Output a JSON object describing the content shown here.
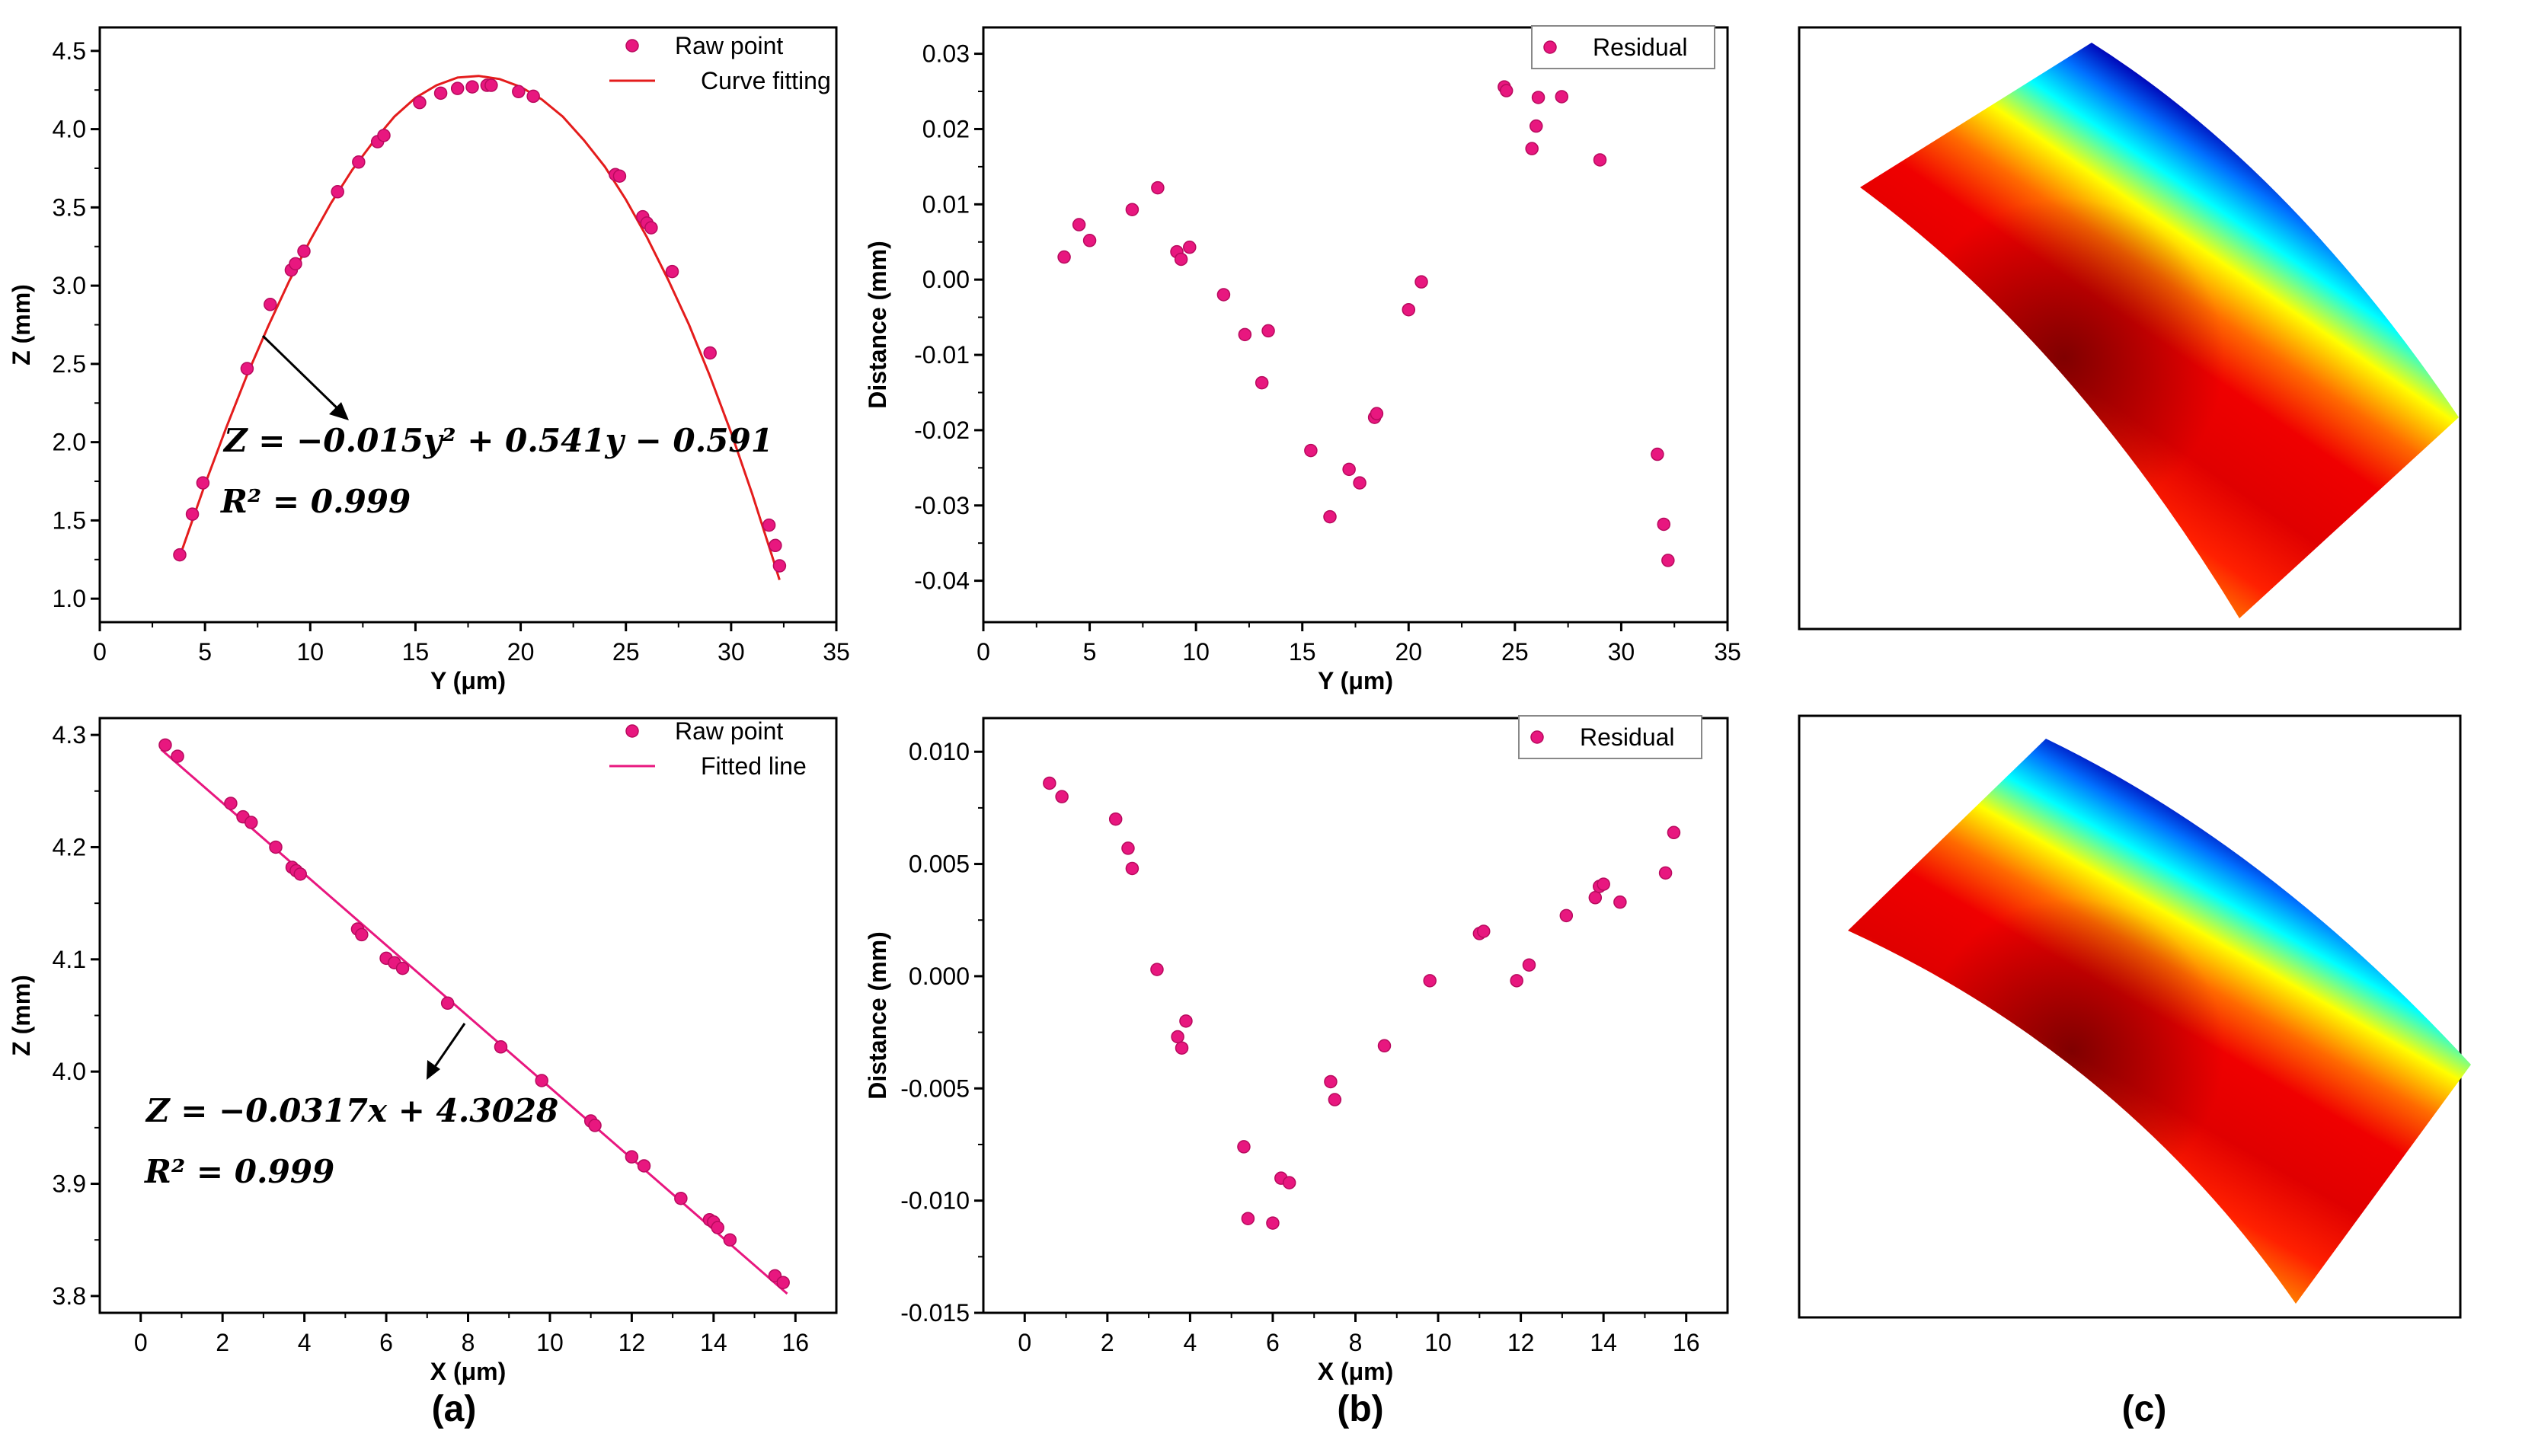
{
  "chart_data": [
    {
      "id": "chart-a-top",
      "type": "scatter",
      "xlabel": "Y (μm)",
      "ylabel": "Z (mm)",
      "xlim": [
        0,
        35
      ],
      "ylim": [
        0.85,
        4.65
      ],
      "xticks": [
        0,
        5,
        10,
        15,
        20,
        25,
        30,
        35
      ],
      "yticks": [
        1.0,
        1.5,
        2.0,
        2.5,
        3.0,
        3.5,
        4.0,
        4.5
      ],
      "ytick_decimals": 1,
      "series": [
        {
          "name": "Raw point",
          "kind": "points",
          "color": "#e8177f",
          "x": [
            3.8,
            4.4,
            4.9,
            7.0,
            8.1,
            9.1,
            9.3,
            9.7,
            11.3,
            12.3,
            13.2,
            13.5,
            15.2,
            16.2,
            17.0,
            17.7,
            18.4,
            18.6,
            19.9,
            20.6,
            24.5,
            24.7,
            25.8,
            26.0,
            26.2,
            27.2,
            29.0,
            31.8,
            32.1,
            32.3
          ],
          "y": [
            1.28,
            1.54,
            1.74,
            2.47,
            2.88,
            3.1,
            3.14,
            3.22,
            3.6,
            3.79,
            3.92,
            3.96,
            4.17,
            4.23,
            4.26,
            4.27,
            4.28,
            4.28,
            4.24,
            4.21,
            3.71,
            3.7,
            3.44,
            3.4,
            3.37,
            3.09,
            2.57,
            1.47,
            1.34,
            1.21
          ]
        },
        {
          "name": "Curve fitting",
          "kind": "line",
          "color": "#e41c1c",
          "x": [
            3.8,
            5,
            6,
            7,
            8,
            9,
            10,
            11,
            12,
            13,
            14,
            15,
            16,
            17,
            18,
            19,
            20,
            21,
            22,
            23,
            24,
            25,
            26,
            27,
            28,
            29,
            30,
            31,
            32,
            32.3
          ],
          "y": [
            1.27,
            1.73,
            2.09,
            2.43,
            2.74,
            3.03,
            3.29,
            3.53,
            3.74,
            3.92,
            4.08,
            4.2,
            4.28,
            4.33,
            4.34,
            4.32,
            4.27,
            4.19,
            4.08,
            3.93,
            3.76,
            3.55,
            3.31,
            3.04,
            2.75,
            2.42,
            2.06,
            1.67,
            1.25,
            1.12
          ]
        }
      ],
      "legend": {
        "position": "top-right",
        "entries": [
          "Raw point",
          "Curve fitting"
        ]
      },
      "annotation": {
        "equation": "Z = −0.015y² + 0.541y − 0.591",
        "r2": "R² = 0.999"
      }
    },
    {
      "id": "chart-b-top",
      "type": "scatter",
      "xlabel": "Y (μm)",
      "ylabel": "Distance (mm)",
      "xlim": [
        0,
        35
      ],
      "ylim": [
        -0.0455,
        0.0335
      ],
      "xticks": [
        0,
        5,
        10,
        15,
        20,
        25,
        30,
        35
      ],
      "yticks": [
        -0.04,
        -0.03,
        -0.02,
        -0.01,
        0.0,
        0.01,
        0.02,
        0.03
      ],
      "ytick_decimals": 2,
      "series": [
        {
          "name": "Residual",
          "kind": "points",
          "color": "#e8177f",
          "x": [
            3.8,
            4.5,
            5.0,
            7.0,
            8.2,
            9.1,
            9.3,
            9.7,
            11.3,
            12.3,
            13.1,
            13.4,
            15.4,
            16.3,
            17.2,
            17.7,
            18.4,
            18.5,
            20.0,
            20.6,
            24.5,
            24.6,
            25.8,
            26.0,
            26.1,
            27.2,
            29.0,
            31.7,
            32.0,
            32.2
          ],
          "y": [
            0.003,
            0.0073,
            0.0052,
            0.0093,
            0.0122,
            0.0037,
            0.0027,
            0.0043,
            -0.002,
            -0.0073,
            -0.0137,
            -0.0068,
            -0.0227,
            -0.0315,
            -0.0252,
            -0.027,
            -0.0183,
            -0.0178,
            -0.004,
            -0.0003,
            0.0256,
            0.0251,
            0.0174,
            0.0204,
            0.0242,
            0.0243,
            0.0159,
            -0.0232,
            -0.0325,
            -0.0373
          ]
        }
      ],
      "legend": {
        "position": "top-right",
        "entries": [
          "Residual"
        ]
      }
    },
    {
      "id": "chart-a-bottom",
      "type": "scatter",
      "xlabel": "X (μm)",
      "ylabel": "Z (mm)",
      "xlim": [
        -1,
        17
      ],
      "ylim": [
        3.785,
        4.315
      ],
      "xticks": [
        0,
        2,
        4,
        6,
        8,
        10,
        12,
        14,
        16
      ],
      "yticks": [
        3.8,
        3.9,
        4.0,
        4.1,
        4.2,
        4.3
      ],
      "ytick_decimals": 1,
      "series": [
        {
          "name": "Raw point",
          "kind": "points",
          "color": "#e8177f",
          "x": [
            0.6,
            0.9,
            2.2,
            2.5,
            2.7,
            3.3,
            3.7,
            3.8,
            3.9,
            5.3,
            5.4,
            6.0,
            6.2,
            6.4,
            7.5,
            8.8,
            9.8,
            11.0,
            11.1,
            12.0,
            12.3,
            13.2,
            13.9,
            14.0,
            14.1,
            14.4,
            15.5,
            15.7
          ],
          "y": [
            4.291,
            4.281,
            4.239,
            4.227,
            4.222,
            4.2,
            4.182,
            4.179,
            4.176,
            4.127,
            4.122,
            4.101,
            4.097,
            4.092,
            4.061,
            4.022,
            3.992,
            3.956,
            3.952,
            3.924,
            3.916,
            3.887,
            3.868,
            3.866,
            3.861,
            3.85,
            3.818,
            3.812
          ]
        },
        {
          "name": "Fitted line",
          "kind": "line",
          "color": "#e8177f",
          "x": [
            0.5,
            15.8
          ],
          "y": [
            4.287,
            3.802
          ]
        }
      ],
      "legend": {
        "position": "top-right",
        "entries": [
          "Raw point",
          "Fitted line"
        ]
      },
      "annotation": {
        "equation": "Z = −0.0317x + 4.3028",
        "r2": "R² = 0.999"
      }
    },
    {
      "id": "chart-b-bottom",
      "type": "scatter",
      "xlabel": "X (μm)",
      "ylabel": "Distance (mm)",
      "xlim": [
        -1,
        17
      ],
      "ylim": [
        -0.015,
        0.0115
      ],
      "xticks": [
        0,
        2,
        4,
        6,
        8,
        10,
        12,
        14,
        16
      ],
      "yticks": [
        -0.015,
        -0.01,
        -0.005,
        0.0,
        0.005,
        0.01
      ],
      "ytick_decimals": 3,
      "series": [
        {
          "name": "Residual",
          "kind": "points",
          "color": "#e8177f",
          "x": [
            0.6,
            0.9,
            2.2,
            2.5,
            2.6,
            3.2,
            3.7,
            3.8,
            3.9,
            5.3,
            5.4,
            6.0,
            6.2,
            6.4,
            7.4,
            7.5,
            8.7,
            9.8,
            11.0,
            11.1,
            11.9,
            12.2,
            13.1,
            13.8,
            13.9,
            14.0,
            14.4,
            15.5,
            15.7
          ],
          "y": [
            0.0086,
            0.008,
            0.007,
            0.0057,
            0.0048,
            0.0003,
            -0.0027,
            -0.0032,
            -0.002,
            -0.0076,
            -0.0108,
            -0.011,
            -0.009,
            -0.0092,
            -0.0047,
            -0.0055,
            -0.0031,
            -0.0002,
            0.0019,
            0.002,
            -0.0002,
            0.0005,
            0.0027,
            0.0035,
            0.004,
            0.0041,
            0.0033,
            0.0046,
            0.0064
          ]
        }
      ],
      "legend": {
        "position": "top-right",
        "entries": [
          "Residual"
        ]
      }
    }
  ],
  "surface_panels": {
    "colormap": [
      "#0000b4",
      "#0080ff",
      "#00ffff",
      "#ffff00",
      "#ff8000",
      "#ff0000",
      "#8b0000"
    ]
  },
  "panel_labels": {
    "a": "(a)",
    "b": "(b)",
    "c": "(c)"
  }
}
